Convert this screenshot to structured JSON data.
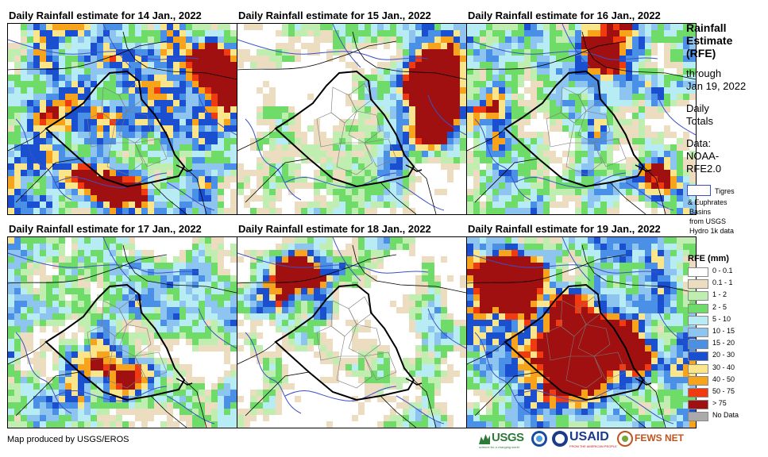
{
  "panels": [
    {
      "title": "Daily Rainfall estimate for 14 Jan., 2022"
    },
    {
      "title": "Daily Rainfall estimate for 15 Jan., 2022"
    },
    {
      "title": "Daily Rainfall estimate for 16 Jan., 2022"
    },
    {
      "title": "Daily Rainfall estimate for 17 Jan., 2022"
    },
    {
      "title": "Daily Rainfall estimate for 18 Jan., 2022"
    },
    {
      "title": "Daily Rainfall estimate for 19 Jan., 2022"
    }
  ],
  "sidebar": {
    "heading_line1": "Rainfall",
    "heading_line2": "Estimate",
    "heading_line3": "(RFE)",
    "through_line1": "through",
    "through_line2": "Jan 19, 2022",
    "daily_line1": "Daily",
    "daily_line2": "Totals",
    "data_line1": "Data:",
    "data_line2": "NOAA-",
    "data_line3": "RFE2.0",
    "basin_line1": "Tigres",
    "basin_line2": "& Euphrates",
    "basin_line3": "Basins",
    "basin_line4": "from USGS",
    "basin_line5": "Hydro 1k data"
  },
  "legend": {
    "title": "RFE (mm)",
    "items": [
      {
        "label": "0 - 0.1",
        "color": "#ffffff"
      },
      {
        "label": "0.1 - 1",
        "color": "#ecdcc0"
      },
      {
        "label": "1 - 2",
        "color": "#bfeeb0"
      },
      {
        "label": "2 - 5",
        "color": "#6fdc6a"
      },
      {
        "label": "5 - 10",
        "color": "#b8ecf4"
      },
      {
        "label": "10 - 15",
        "color": "#8ec4f0"
      },
      {
        "label": "15 - 20",
        "color": "#4a90e6"
      },
      {
        "label": "20 - 30",
        "color": "#1a50d0"
      },
      {
        "label": "30 - 40",
        "color": "#fbe58a"
      },
      {
        "label": "40 - 50",
        "color": "#f7a41c"
      },
      {
        "label": "50 - 75",
        "color": "#f03a10"
      },
      {
        "label": "> 75",
        "color": "#a01010"
      },
      {
        "label": "No Data",
        "color": "#aaaaaa"
      }
    ]
  },
  "footer": {
    "credit": "Map produced by USGS/EROS"
  },
  "logos": {
    "usgs": "USGS",
    "usgs_tag": "science for a changing world",
    "usaid": "USAID",
    "usaid_tag": "FROM THE AMERICAN PEOPLE",
    "fews": "FEWS NET"
  }
}
